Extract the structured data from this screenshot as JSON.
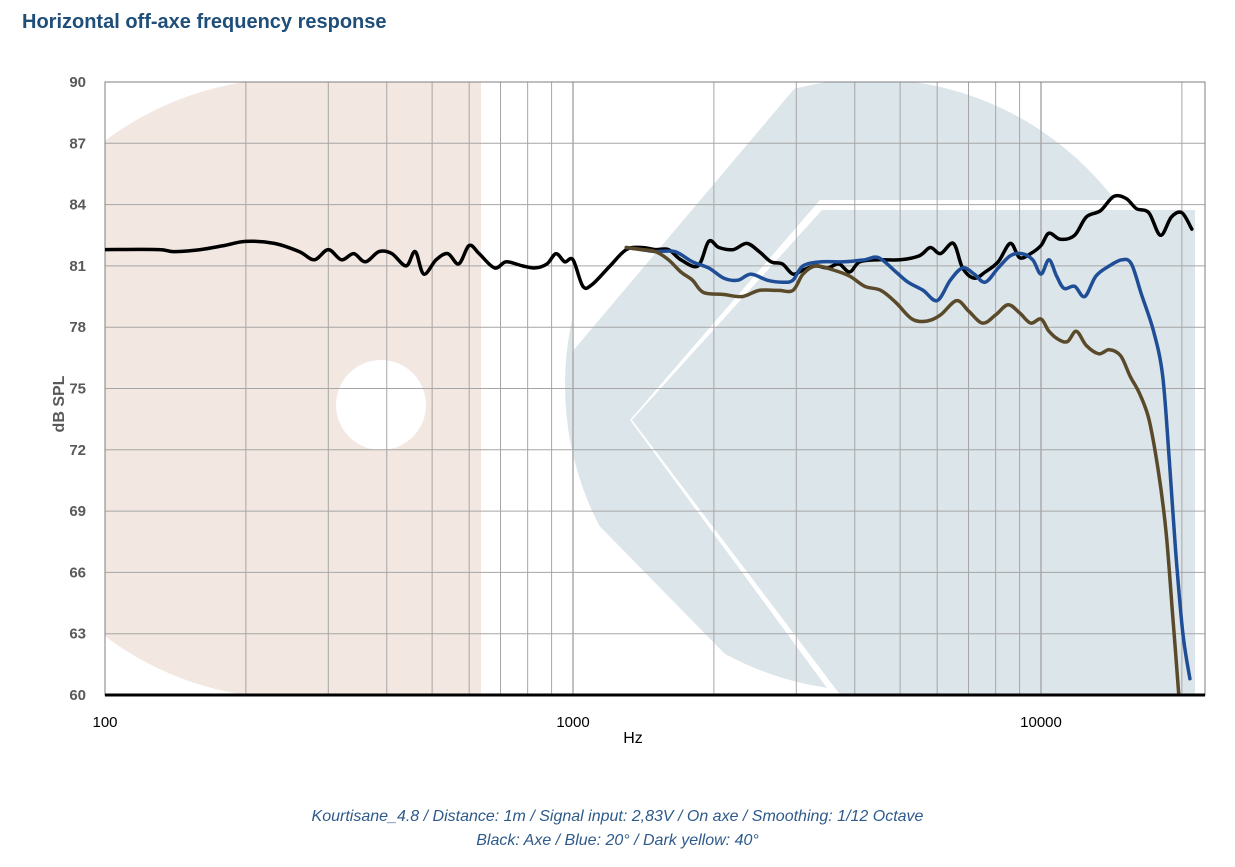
{
  "title": "Horizontal off-axe frequency response",
  "caption_line1": "Kourtisane_4.8 / Distance: 1m / Signal input: 2,83V / On axe / Smoothing: 1/12 Octave",
  "caption_line2": "Black: Axe / Blue: 20° / Dark yellow: 40°",
  "chart_data": {
    "type": "line",
    "xlabel": "Hz",
    "ylabel": "dB SPL",
    "x_scale": "log",
    "xlim": [
      100,
      21000
    ],
    "ylim": [
      60,
      90
    ],
    "x_tick_labels": [
      "100",
      "1000",
      "10000"
    ],
    "y_tick_labels": [
      "90",
      "87",
      "84",
      "81",
      "78",
      "75",
      "72",
      "69",
      "66",
      "63",
      "60"
    ],
    "grid": true,
    "series": [
      {
        "color": "#000000",
        "points": [
          [
            100,
            81.8
          ],
          [
            130,
            81.8
          ],
          [
            140,
            81.7
          ],
          [
            160,
            81.8
          ],
          [
            180,
            82.0
          ],
          [
            200,
            82.2
          ],
          [
            230,
            82.1
          ],
          [
            260,
            81.7
          ],
          [
            280,
            81.3
          ],
          [
            300,
            81.8
          ],
          [
            320,
            81.3
          ],
          [
            340,
            81.6
          ],
          [
            360,
            81.2
          ],
          [
            385,
            81.7
          ],
          [
            410,
            81.6
          ],
          [
            440,
            81.0
          ],
          [
            460,
            81.7
          ],
          [
            480,
            80.6
          ],
          [
            510,
            81.3
          ],
          [
            540,
            81.6
          ],
          [
            570,
            81.1
          ],
          [
            600,
            82.0
          ],
          [
            630,
            81.6
          ],
          [
            680,
            80.9
          ],
          [
            720,
            81.2
          ],
          [
            780,
            81.0
          ],
          [
            830,
            80.9
          ],
          [
            880,
            81.1
          ],
          [
            920,
            81.6
          ],
          [
            960,
            81.2
          ],
          [
            1000,
            81.3
          ],
          [
            1050,
            80.0
          ],
          [
            1100,
            80.1
          ],
          [
            1200,
            81.0
          ],
          [
            1300,
            81.8
          ],
          [
            1400,
            81.9
          ],
          [
            1500,
            81.8
          ],
          [
            1600,
            81.8
          ],
          [
            1700,
            81.3
          ],
          [
            1850,
            81.0
          ],
          [
            1950,
            82.2
          ],
          [
            2050,
            81.9
          ],
          [
            2200,
            81.8
          ],
          [
            2350,
            82.1
          ],
          [
            2500,
            81.7
          ],
          [
            2650,
            81.2
          ],
          [
            2800,
            81.1
          ],
          [
            2950,
            80.6
          ],
          [
            3100,
            80.8
          ],
          [
            3300,
            81.0
          ],
          [
            3500,
            80.9
          ],
          [
            3700,
            81.1
          ],
          [
            3900,
            80.7
          ],
          [
            4100,
            81.2
          ],
          [
            4500,
            81.3
          ],
          [
            5000,
            81.3
          ],
          [
            5500,
            81.5
          ],
          [
            5800,
            81.9
          ],
          [
            6100,
            81.6
          ],
          [
            6500,
            82.1
          ],
          [
            6800,
            80.9
          ],
          [
            7200,
            80.4
          ],
          [
            7600,
            80.7
          ],
          [
            8100,
            81.2
          ],
          [
            8600,
            82.1
          ],
          [
            9000,
            81.4
          ],
          [
            9500,
            81.6
          ],
          [
            10000,
            82.0
          ],
          [
            10400,
            82.6
          ],
          [
            11000,
            82.3
          ],
          [
            11800,
            82.5
          ],
          [
            12500,
            83.4
          ],
          [
            13400,
            83.7
          ],
          [
            14300,
            84.4
          ],
          [
            15200,
            84.3
          ],
          [
            16000,
            83.8
          ],
          [
            17000,
            83.6
          ],
          [
            18000,
            82.5
          ],
          [
            19000,
            83.4
          ],
          [
            20000,
            83.6
          ],
          [
            21000,
            82.8
          ]
        ]
      },
      {
        "color": "#1f4e96",
        "points": [
          [
            1300,
            81.9
          ],
          [
            1400,
            81.8
          ],
          [
            1500,
            81.7
          ],
          [
            1650,
            81.7
          ],
          [
            1800,
            81.2
          ],
          [
            1950,
            80.9
          ],
          [
            2100,
            80.4
          ],
          [
            2250,
            80.3
          ],
          [
            2400,
            80.6
          ],
          [
            2600,
            80.3
          ],
          [
            2800,
            80.2
          ],
          [
            2950,
            80.3
          ],
          [
            3100,
            81.0
          ],
          [
            3400,
            81.2
          ],
          [
            3800,
            81.2
          ],
          [
            4200,
            81.3
          ],
          [
            4500,
            81.4
          ],
          [
            4900,
            80.7
          ],
          [
            5200,
            80.2
          ],
          [
            5600,
            79.8
          ],
          [
            6000,
            79.3
          ],
          [
            6400,
            80.3
          ],
          [
            6800,
            80.9
          ],
          [
            7200,
            80.6
          ],
          [
            7600,
            80.2
          ],
          [
            8100,
            80.9
          ],
          [
            8600,
            81.5
          ],
          [
            9100,
            81.6
          ],
          [
            9600,
            81.3
          ],
          [
            10000,
            80.6
          ],
          [
            10400,
            81.3
          ],
          [
            10800,
            80.5
          ],
          [
            11200,
            79.9
          ],
          [
            11800,
            80.0
          ],
          [
            12400,
            79.5
          ],
          [
            13100,
            80.5
          ],
          [
            14000,
            81.0
          ],
          [
            14900,
            81.3
          ],
          [
            15600,
            81.1
          ],
          [
            16400,
            79.6
          ],
          [
            17400,
            77.8
          ],
          [
            18200,
            75.6
          ],
          [
            18800,
            71.5
          ],
          [
            19400,
            67.0
          ],
          [
            20100,
            63.0
          ],
          [
            20800,
            60.8
          ]
        ]
      },
      {
        "color": "#5a4a2a",
        "points": [
          [
            1300,
            81.9
          ],
          [
            1400,
            81.8
          ],
          [
            1500,
            81.7
          ],
          [
            1600,
            81.3
          ],
          [
            1700,
            80.7
          ],
          [
            1800,
            80.3
          ],
          [
            1900,
            79.7
          ],
          [
            2100,
            79.6
          ],
          [
            2300,
            79.5
          ],
          [
            2500,
            79.8
          ],
          [
            2750,
            79.8
          ],
          [
            2950,
            79.8
          ],
          [
            3100,
            80.6
          ],
          [
            3300,
            81.0
          ],
          [
            3600,
            80.8
          ],
          [
            3900,
            80.5
          ],
          [
            4200,
            80.0
          ],
          [
            4550,
            79.8
          ],
          [
            4900,
            79.2
          ],
          [
            5300,
            78.4
          ],
          [
            5700,
            78.3
          ],
          [
            6100,
            78.6
          ],
          [
            6600,
            79.3
          ],
          [
            7000,
            78.8
          ],
          [
            7500,
            78.2
          ],
          [
            8000,
            78.6
          ],
          [
            8500,
            79.1
          ],
          [
            9000,
            78.7
          ],
          [
            9500,
            78.2
          ],
          [
            10000,
            78.4
          ],
          [
            10400,
            77.8
          ],
          [
            10900,
            77.4
          ],
          [
            11400,
            77.3
          ],
          [
            11900,
            77.8
          ],
          [
            12500,
            77.1
          ],
          [
            13300,
            76.7
          ],
          [
            14000,
            76.9
          ],
          [
            14800,
            76.6
          ],
          [
            15500,
            75.6
          ],
          [
            16200,
            74.8
          ],
          [
            17000,
            73.5
          ],
          [
            17800,
            71.0
          ],
          [
            18500,
            68.0
          ],
          [
            19100,
            64.0
          ],
          [
            19700,
            60.0
          ]
        ]
      }
    ]
  }
}
